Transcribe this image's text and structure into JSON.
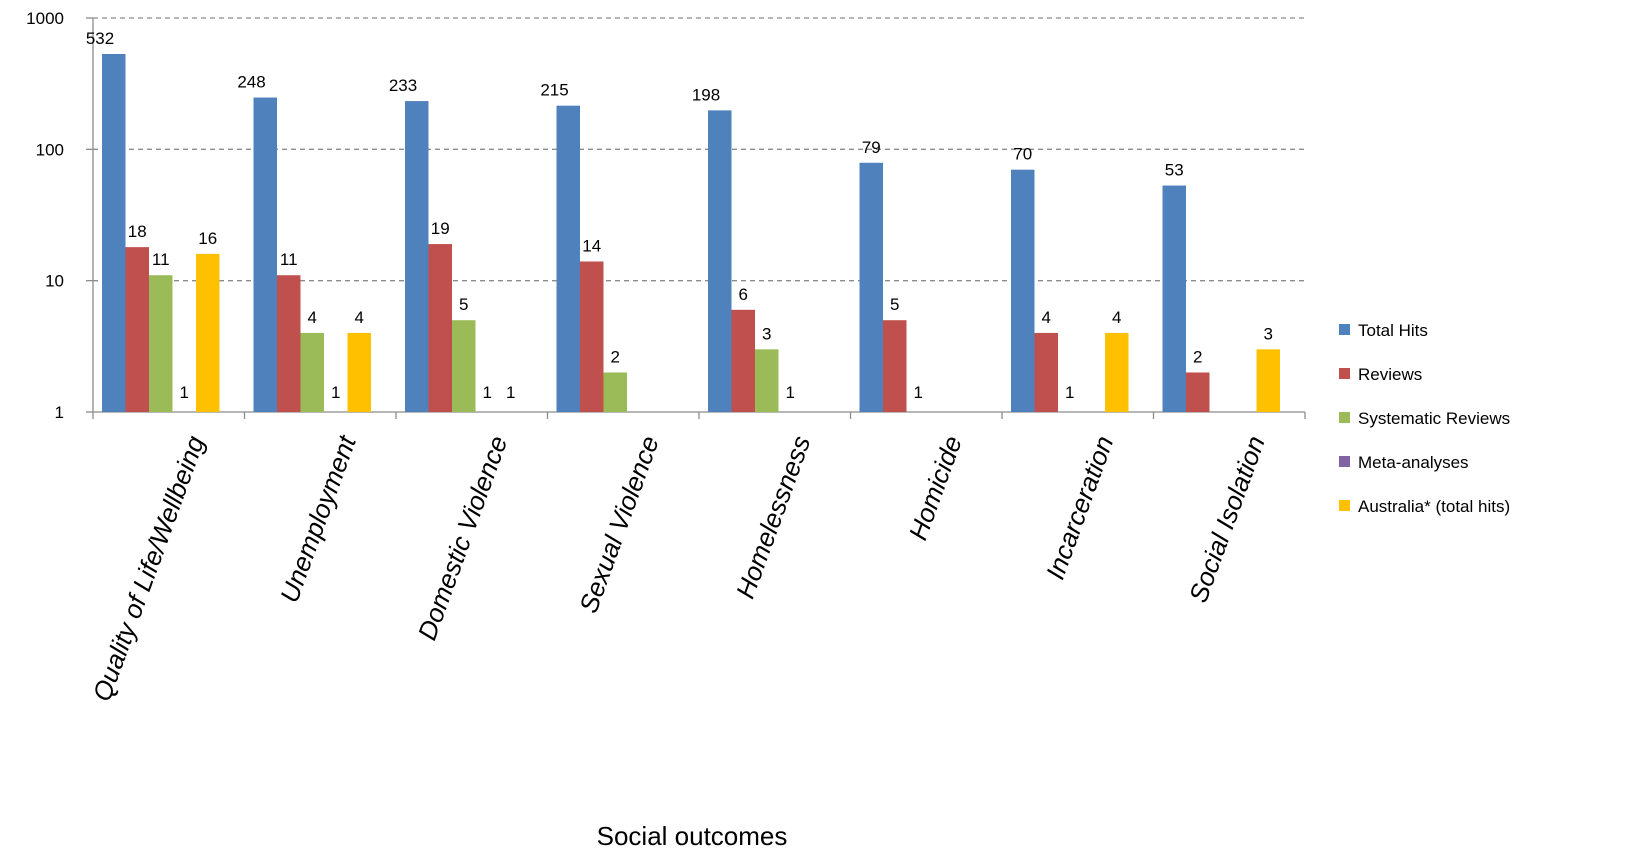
{
  "chart_data": {
    "type": "bar",
    "title": "",
    "xlabel": "Social outcomes",
    "ylabel": "",
    "yscale": "log",
    "ylim": [
      1,
      1000
    ],
    "yticks": [
      "1",
      "10",
      "100",
      "1000"
    ],
    "grid": true,
    "legend_position": "right",
    "categories": [
      "Quality of Life/Wellbeing",
      "Unemployment",
      "Domestic Violence",
      "Sexual Violence",
      "Homelessness",
      "Homicide",
      "Incarceration",
      "Social Isolation"
    ],
    "series": [
      {
        "name": "Total Hits",
        "color": "#4F81BD",
        "values": [
          532,
          248,
          233,
          215,
          198,
          79,
          70,
          53
        ]
      },
      {
        "name": "Reviews",
        "color": "#C0504D",
        "values": [
          18,
          11,
          19,
          14,
          6,
          5,
          4,
          2
        ]
      },
      {
        "name": "Systematic Reviews",
        "color": "#9BBB59",
        "values": [
          11,
          4,
          5,
          2,
          3,
          1,
          1,
          null
        ]
      },
      {
        "name": "Meta-analyses",
        "color": "#8064A2",
        "values": [
          1,
          1,
          1,
          null,
          1,
          null,
          null,
          null
        ]
      },
      {
        "name": "Australia* (total hits)",
        "color": "#FFC000",
        "values": [
          16,
          4,
          1,
          null,
          null,
          null,
          4,
          3
        ]
      }
    ]
  }
}
